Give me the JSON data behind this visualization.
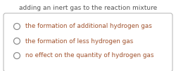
{
  "title": "adding an inert gas to the reaction mixture",
  "title_color": "#555555",
  "title_fontsize": 6.5,
  "options": [
    "the formation of additional hydrogen gas",
    "the formation of less hydrogen gas",
    "no effect on the quantity of hydrogen gas"
  ],
  "option_color": "#a0522d",
  "option_fontsize": 6.3,
  "circle_edgecolor": "#888888",
  "bg_color": "#ffffff",
  "box_edgecolor": "#bbbbbb",
  "fig_width": 2.5,
  "fig_height": 1.02,
  "dpi": 100
}
